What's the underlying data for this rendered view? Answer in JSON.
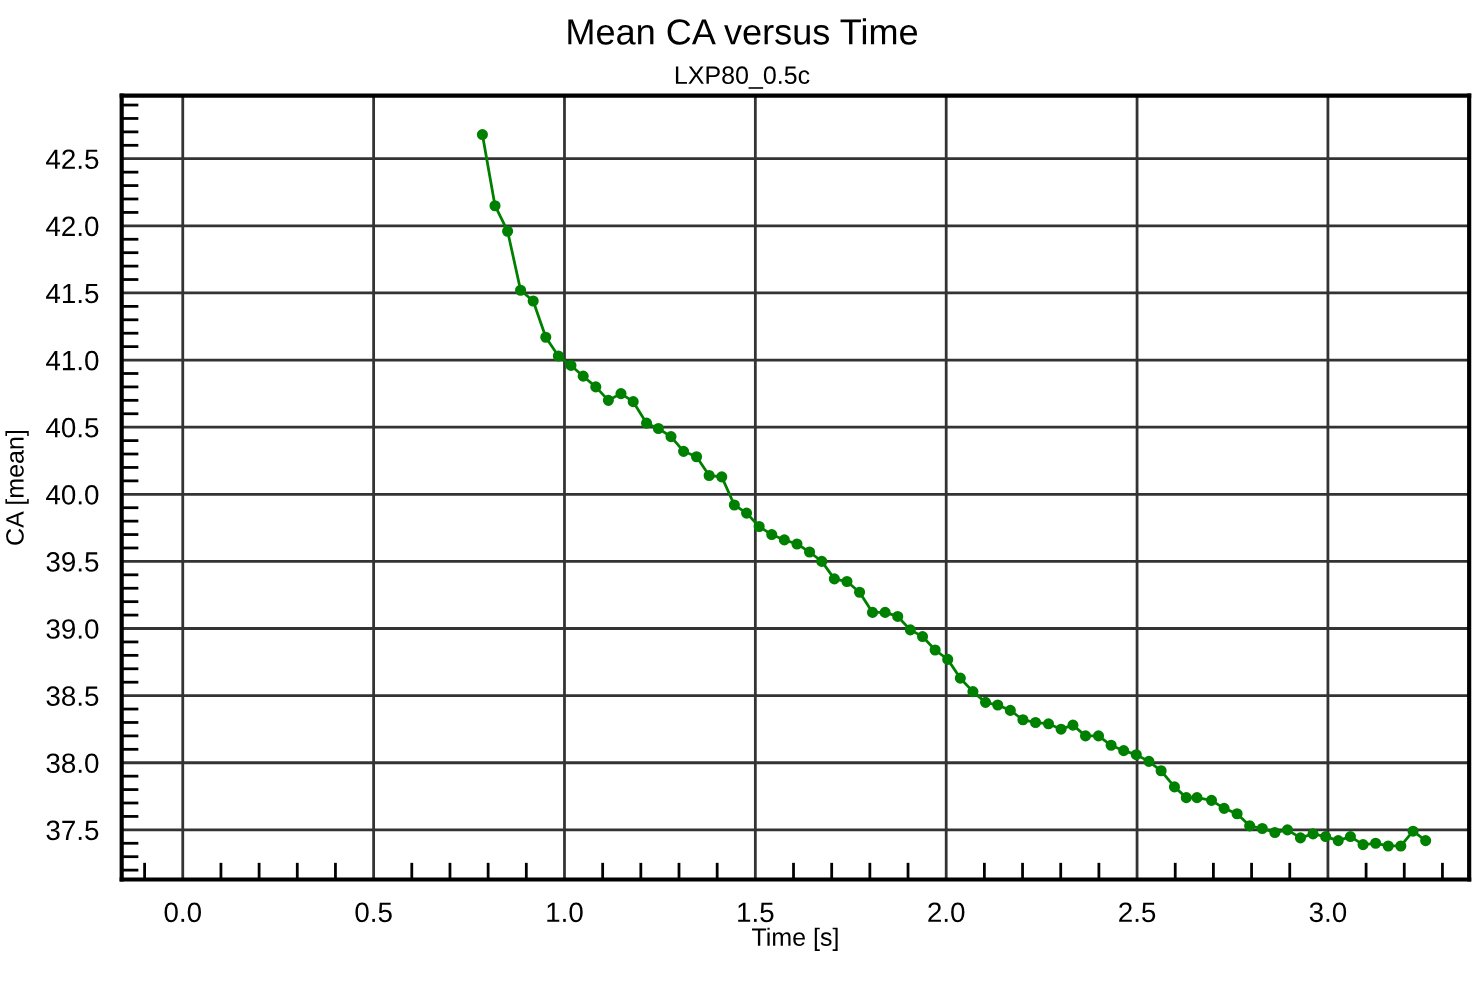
{
  "chart_data": {
    "type": "line",
    "title": "Mean CA versus Time",
    "subtitle": "LXP80_0.5c",
    "xlabel": "Time [s]",
    "ylabel": "CA [mean]",
    "x": [
      0.785,
      0.818,
      0.851,
      0.885,
      0.918,
      0.951,
      0.984,
      1.017,
      1.049,
      1.082,
      1.115,
      1.148,
      1.18,
      1.215,
      1.246,
      1.279,
      1.312,
      1.346,
      1.379,
      1.412,
      1.445,
      1.477,
      1.51,
      1.543,
      1.576,
      1.609,
      1.642,
      1.674,
      1.707,
      1.74,
      1.773,
      1.807,
      1.84,
      1.873,
      1.906,
      1.938,
      1.971,
      2.004,
      2.037,
      2.07,
      2.103,
      2.135,
      2.168,
      2.201,
      2.234,
      2.268,
      2.301,
      2.332,
      2.365,
      2.399,
      2.432,
      2.465,
      2.498,
      2.531,
      2.563,
      2.598,
      2.629,
      2.657,
      2.695,
      2.728,
      2.762,
      2.795,
      2.828,
      2.861,
      2.894,
      2.928,
      2.961,
      2.994,
      3.027,
      3.059,
      3.092,
      3.125,
      3.158,
      3.191,
      3.223,
      3.256
    ],
    "series": [
      {
        "color": "#008000",
        "values": [
          42.68,
          42.15,
          41.96,
          41.52,
          41.44,
          41.17,
          41.03,
          40.96,
          40.88,
          40.8,
          40.7,
          40.75,
          40.69,
          40.53,
          40.49,
          40.43,
          40.32,
          40.28,
          40.14,
          40.13,
          39.92,
          39.86,
          39.76,
          39.7,
          39.66,
          39.63,
          39.57,
          39.5,
          39.37,
          39.35,
          39.27,
          39.12,
          39.12,
          39.09,
          38.99,
          38.94,
          38.84,
          38.77,
          38.63,
          38.53,
          38.45,
          38.43,
          38.39,
          38.32,
          38.3,
          38.29,
          38.25,
          38.28,
          38.2,
          38.2,
          38.13,
          38.09,
          38.06,
          38.01,
          37.94,
          37.82,
          37.74,
          37.74,
          37.72,
          37.66,
          37.62,
          37.53,
          37.51,
          37.48,
          37.5,
          37.44,
          37.47,
          37.45,
          37.42,
          37.45,
          37.39,
          37.4,
          37.38,
          37.38,
          37.49,
          37.42
        ]
      }
    ],
    "xlim": [
      -0.16,
      3.37
    ],
    "ylim": [
      37.13,
      42.97
    ],
    "xticks": [
      {
        "value": 0,
        "label": "0.0"
      },
      0.5,
      {
        "value": 1,
        "label": "1.0"
      },
      1.5,
      {
        "value": 2,
        "label": "2.0"
      },
      2.5,
      {
        "value": 3,
        "label": "3.0"
      }
    ],
    "yticks": [
      37.5,
      {
        "value": 38,
        "label": "38.0"
      },
      38.5,
      {
        "value": 39,
        "label": "39.0"
      },
      39.5,
      {
        "value": 40,
        "label": "40.0"
      },
      40.5,
      {
        "value": 41,
        "label": "41.0"
      },
      41.5,
      {
        "value": 42,
        "label": "42.0"
      },
      42.5
    ],
    "grid": true,
    "marker": "circle",
    "line_style": "solid"
  }
}
